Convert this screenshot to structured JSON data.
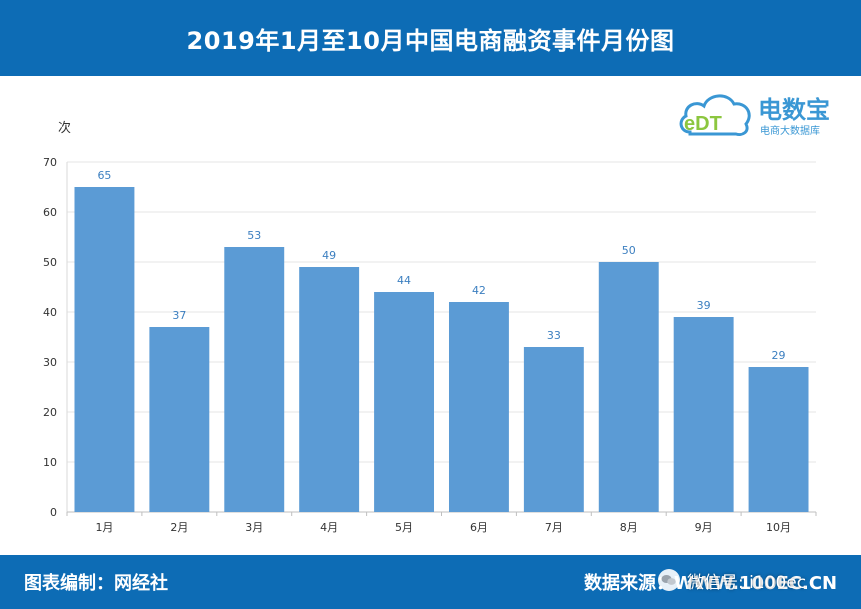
{
  "header": {
    "title": "2019年1月至10月中国电商融资事件月份图"
  },
  "logo": {
    "mark_text": "eDT",
    "name": "电数宝",
    "subtitle": "电商大数据库"
  },
  "footer": {
    "credit": "图表编制：网经社",
    "source": "数据来源：WWW.100EC.CN"
  },
  "watermark": {
    "text": "微信号: i100ec"
  },
  "colors": {
    "banner": "#0d6cb5",
    "bar": "#5b9bd5",
    "value_label": "#3c7fc0",
    "grid": "#e6e6e6"
  },
  "chart_data": {
    "type": "bar",
    "title": "2019年1月至10月中国电商融资事件月份图",
    "xlabel": "",
    "ylabel": "次",
    "categories": [
      "1月",
      "2月",
      "3月",
      "4月",
      "5月",
      "6月",
      "7月",
      "8月",
      "9月",
      "10月"
    ],
    "values": [
      65,
      37,
      53,
      49,
      44,
      42,
      33,
      50,
      39,
      29
    ],
    "ylim": [
      0,
      70
    ],
    "yticks": [
      0,
      10,
      20,
      30,
      40,
      50,
      60,
      70
    ],
    "grid": true,
    "legend": "none"
  }
}
